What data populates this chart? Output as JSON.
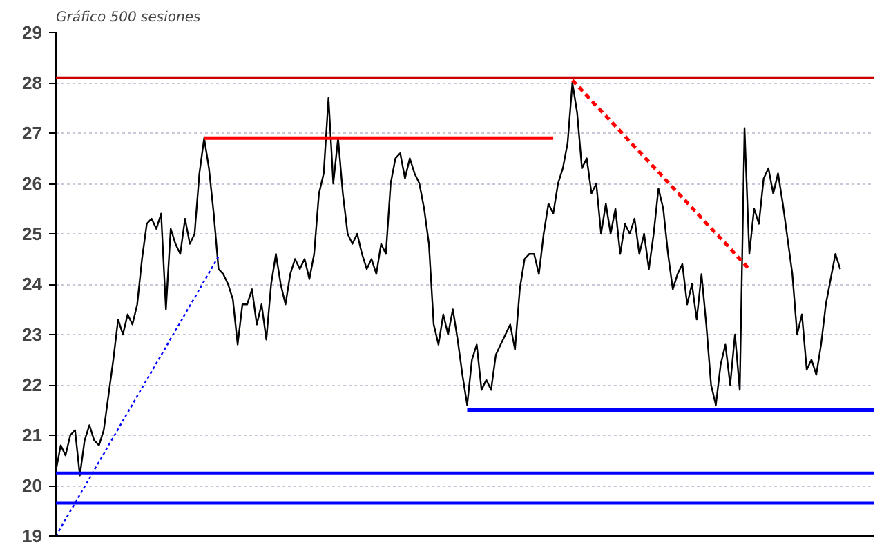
{
  "chart_data": {
    "type": "line",
    "title": "Gráfico 500 sesiones",
    "categories": [
      null,
      null,
      null,
      null,
      null,
      null,
      null,
      null,
      null,
      null,
      null,
      null,
      null,
      null,
      null,
      null,
      null,
      null,
      null,
      null,
      null,
      null,
      null,
      null,
      null,
      null,
      null,
      null,
      null,
      null,
      null,
      null,
      null,
      null,
      null,
      null,
      null,
      null,
      null,
      null,
      null,
      null,
      null,
      null,
      null,
      null,
      null,
      null,
      null,
      null,
      null,
      null,
      null,
      null,
      null,
      null,
      null,
      null,
      null,
      null,
      null,
      null,
      null,
      null,
      null,
      null,
      null,
      null,
      null,
      null,
      null,
      null,
      null,
      null,
      null,
      null,
      null,
      null,
      null,
      null,
      null,
      null,
      null,
      null,
      null,
      null,
      null,
      null,
      null,
      null,
      null,
      null,
      null,
      null,
      null,
      null,
      null,
      null,
      null,
      null,
      null,
      null,
      null,
      null,
      null,
      null,
      null,
      null,
      null,
      null,
      null,
      null,
      null,
      null,
      null,
      null,
      null,
      null,
      null,
      null,
      null,
      null,
      null,
      null,
      null,
      null,
      null,
      null,
      null,
      null,
      null,
      null,
      null,
      null,
      null,
      null,
      null,
      null,
      null,
      null,
      null,
      null,
      null,
      null,
      null,
      null,
      null,
      null,
      null,
      null,
      null,
      null,
      null,
      null,
      null,
      null,
      null,
      null,
      null,
      null,
      null,
      null,
      null,
      null,
      null,
      null,
      null,
      null,
      null,
      null,
      null,
      null
    ],
    "ylim": [
      19,
      29
    ],
    "yticks": [
      19,
      20,
      21,
      22,
      23,
      24,
      25,
      26,
      27,
      28,
      29
    ],
    "grid": "y",
    "marker": "none",
    "ref_lines": [
      {
        "axis": "y",
        "value": 28.1,
        "label": null,
        "color": "#cc0000",
        "line_style": "solid"
      },
      {
        "axis": "y",
        "value": 20.25,
        "label": null,
        "color": "#0000ff",
        "line_style": "solid"
      },
      {
        "axis": "y",
        "value": 19.65,
        "label": null,
        "color": "#0000ff",
        "line_style": "solid"
      }
    ],
    "series": [
      {
        "color": "#000000",
        "line_style": "solid",
        "values": [
          20.3,
          20.8,
          20.6,
          21.0,
          21.1,
          20.2,
          20.9,
          21.2,
          20.9,
          20.8,
          21.1,
          21.8,
          22.5,
          23.3,
          23.0,
          23.4,
          23.2,
          23.6,
          24.5,
          25.2,
          25.3,
          25.1,
          25.4,
          23.5,
          25.1,
          24.8,
          24.6,
          25.3,
          24.8,
          25.0,
          26.2,
          26.9,
          26.3,
          25.4,
          24.3,
          24.2,
          24.0,
          23.7,
          22.8,
          23.6,
          23.6,
          23.9,
          23.2,
          23.6,
          22.9,
          24.0,
          24.6,
          24.0,
          23.6,
          24.2,
          24.5,
          24.3,
          24.5,
          24.1,
          24.6,
          25.8,
          26.2,
          27.7,
          26.0,
          26.9,
          25.8,
          25.0,
          24.8,
          25.0,
          24.6,
          24.3,
          24.5,
          24.2,
          24.8,
          24.6,
          26.0,
          26.5,
          26.6,
          26.1,
          26.5,
          26.2,
          26.0,
          25.5,
          24.8,
          23.2,
          22.8,
          23.4,
          23.0,
          23.5,
          22.9,
          22.2,
          21.6,
          22.5,
          22.8,
          21.9,
          22.1,
          21.9,
          22.6,
          22.8,
          23.0,
          23.2,
          22.7,
          23.9,
          24.5,
          24.6,
          24.6,
          24.2,
          25.0,
          25.6,
          25.4,
          26.0,
          26.3,
          26.8,
          28.0,
          27.4,
          26.3,
          26.5,
          25.8,
          26.0,
          25.0,
          25.6,
          25.0,
          25.5,
          24.6,
          25.2,
          25.0,
          25.3,
          24.6,
          25.0,
          24.3,
          25.0,
          25.9,
          25.5,
          24.6,
          23.9,
          24.2,
          24.4,
          23.6,
          24.0,
          23.3,
          24.2,
          23.2,
          22.0,
          21.6,
          22.4,
          22.8,
          22.0,
          23.0,
          21.9,
          27.1,
          24.6,
          25.5,
          25.2,
          26.1,
          26.3,
          25.8,
          26.2,
          25.6,
          24.9,
          24.2,
          23.0,
          23.4,
          22.3,
          22.5,
          22.2,
          22.8,
          23.6,
          24.1,
          24.6,
          24.3,
          null,
          null,
          null,
          null,
          null,
          null,
          null
        ]
      },
      {
        "color": "#ff0000",
        "line_style": "solid",
        "values": [
          null,
          null,
          null,
          null,
          null,
          null,
          null,
          null,
          null,
          null,
          null,
          null,
          null,
          null,
          null,
          null,
          null,
          null,
          null,
          null,
          null,
          null,
          null,
          null,
          null,
          null,
          null,
          null,
          null,
          null,
          null,
          26.9,
          26.9,
          26.9,
          26.9,
          26.9,
          26.9,
          26.9,
          26.9,
          26.9,
          26.9,
          26.9,
          26.9,
          26.9,
          26.9,
          26.9,
          26.9,
          26.9,
          26.9,
          26.9,
          26.9,
          26.9,
          26.9,
          26.9,
          26.9,
          26.9,
          26.9,
          26.9,
          26.9,
          26.9,
          26.9,
          26.9,
          26.9,
          26.9,
          26.9,
          26.9,
          26.9,
          26.9,
          26.9,
          26.9,
          26.9,
          26.9,
          26.9,
          26.9,
          26.9,
          26.9,
          26.9,
          26.9,
          26.9,
          26.9,
          26.9,
          26.9,
          26.9,
          26.9,
          26.9,
          26.9,
          26.9,
          26.9,
          26.9,
          26.9,
          26.9,
          26.9,
          26.9,
          26.9,
          26.9,
          26.9,
          26.9,
          26.9,
          26.9,
          26.9,
          26.9,
          26.9,
          26.9,
          26.9,
          26.9,
          null,
          null,
          null,
          null,
          null,
          null,
          null,
          null,
          null,
          null,
          null,
          null,
          null,
          null,
          null,
          null,
          null,
          null,
          null,
          null,
          null,
          null,
          null,
          null,
          null,
          null,
          null,
          null,
          null,
          null,
          null,
          null,
          null,
          null,
          null,
          null,
          null,
          null,
          null,
          null,
          null,
          null,
          null,
          null,
          null,
          null,
          null,
          null,
          null,
          null,
          null,
          null,
          null,
          null,
          null,
          null,
          null,
          null,
          null,
          null,
          null,
          null,
          null,
          null,
          null,
          null,
          null
        ]
      },
      {
        "color": "#0000ff",
        "line_style": "solid",
        "values": [
          null,
          null,
          null,
          null,
          null,
          null,
          null,
          null,
          null,
          null,
          null,
          null,
          null,
          null,
          null,
          null,
          null,
          null,
          null,
          null,
          null,
          null,
          null,
          null,
          null,
          null,
          null,
          null,
          null,
          null,
          null,
          null,
          null,
          null,
          null,
          null,
          null,
          null,
          null,
          null,
          null,
          null,
          null,
          null,
          null,
          null,
          null,
          null,
          null,
          null,
          null,
          null,
          null,
          null,
          null,
          null,
          null,
          null,
          null,
          null,
          null,
          null,
          null,
          null,
          null,
          null,
          null,
          null,
          null,
          null,
          null,
          null,
          null,
          null,
          null,
          null,
          null,
          null,
          null,
          null,
          null,
          null,
          null,
          null,
          null,
          null,
          21.5,
          21.5,
          21.5,
          21.5,
          21.5,
          21.5,
          21.5,
          21.5,
          21.5,
          21.5,
          21.5,
          21.5,
          21.5,
          21.5,
          21.5,
          21.5,
          21.5,
          21.5,
          21.5,
          21.5,
          21.5,
          21.5,
          21.5,
          21.5,
          21.5,
          21.5,
          21.5,
          21.5,
          21.5,
          21.5,
          21.5,
          21.5,
          21.5,
          21.5,
          21.5,
          21.5,
          21.5,
          21.5,
          21.5,
          21.5,
          21.5,
          21.5,
          21.5,
          21.5,
          21.5,
          21.5,
          21.5,
          21.5,
          21.5,
          21.5,
          21.5,
          21.5,
          21.5,
          21.5,
          21.5,
          21.5,
          21.5,
          21.5,
          21.5,
          21.5,
          21.5,
          21.5,
          21.5,
          21.5,
          21.5,
          21.5,
          21.5,
          21.5,
          21.5,
          21.5,
          21.5,
          21.5,
          21.5,
          21.5,
          21.5,
          21.5,
          21.5,
          21.5,
          21.5,
          21.5,
          21.5,
          21.5,
          21.5,
          21.5,
          21.5,
          21.5
        ]
      },
      {
        "color": "#0000ff",
        "line_style": "dotted",
        "values": [
          19.0,
          19.16,
          19.33,
          19.49,
          19.65,
          19.82,
          19.98,
          20.14,
          20.31,
          20.47,
          20.63,
          20.8,
          20.96,
          21.12,
          21.29,
          21.45,
          21.61,
          21.78,
          21.94,
          22.1,
          22.26,
          22.43,
          22.59,
          22.75,
          22.92,
          23.08,
          23.24,
          23.41,
          23.57,
          23.73,
          23.9,
          24.06,
          24.22,
          24.39,
          24.55,
          null,
          null,
          null,
          null,
          null,
          null,
          null,
          null,
          null,
          null,
          null,
          null,
          null,
          null,
          null,
          null,
          null,
          null,
          null,
          null,
          null,
          null,
          null,
          null,
          null,
          null,
          null,
          null,
          null,
          null,
          null,
          null,
          null,
          null,
          null,
          null,
          null,
          null,
          null,
          null,
          null,
          null,
          null,
          null,
          null,
          null,
          null,
          null,
          null,
          null,
          null,
          null,
          null,
          null,
          null,
          null,
          null,
          null,
          null,
          null,
          null,
          null,
          null,
          null,
          null,
          null,
          null,
          null,
          null,
          null,
          null,
          null,
          null,
          null,
          null,
          null,
          null,
          null,
          null,
          null,
          null,
          null,
          null,
          null,
          null,
          null,
          null,
          null,
          null,
          null,
          null,
          null,
          null,
          null,
          null,
          null,
          null,
          null,
          null,
          null,
          null,
          null,
          null,
          null,
          null,
          null,
          null,
          null,
          null,
          null,
          null,
          null,
          null,
          null,
          null,
          null,
          null,
          null,
          null,
          null,
          null,
          null,
          null,
          null,
          null,
          null,
          null,
          null,
          null,
          null,
          null,
          null,
          null,
          null,
          null,
          null,
          null
        ]
      },
      {
        "color": "#ff0000",
        "line_style": "dashed",
        "values": [
          null,
          null,
          null,
          null,
          null,
          null,
          null,
          null,
          null,
          null,
          null,
          null,
          null,
          null,
          null,
          null,
          null,
          null,
          null,
          null,
          null,
          null,
          null,
          null,
          null,
          null,
          null,
          null,
          null,
          null,
          null,
          null,
          null,
          null,
          null,
          null,
          null,
          null,
          null,
          null,
          null,
          null,
          null,
          null,
          null,
          null,
          null,
          null,
          null,
          null,
          null,
          null,
          null,
          null,
          null,
          null,
          null,
          null,
          null,
          null,
          null,
          null,
          null,
          null,
          null,
          null,
          null,
          null,
          null,
          null,
          null,
          null,
          null,
          null,
          null,
          null,
          null,
          null,
          null,
          null,
          null,
          null,
          null,
          null,
          null,
          null,
          null,
          null,
          null,
          null,
          null,
          null,
          null,
          null,
          null,
          null,
          null,
          null,
          null,
          null,
          null,
          null,
          null,
          null,
          null,
          null,
          null,
          null,
          28.05,
          27.95,
          27.85,
          27.75,
          27.64,
          27.54,
          27.44,
          27.34,
          27.24,
          27.14,
          27.04,
          26.94,
          26.83,
          26.73,
          26.63,
          26.53,
          26.43,
          26.33,
          26.23,
          26.12,
          26.02,
          25.92,
          25.82,
          25.72,
          25.62,
          25.52,
          25.42,
          25.31,
          25.21,
          25.11,
          25.01,
          24.91,
          24.81,
          24.71,
          24.6,
          24.5,
          24.4,
          24.3,
          null,
          null,
          null,
          null,
          null,
          null,
          null,
          null,
          null,
          null,
          null,
          null,
          null,
          null,
          null,
          null,
          null,
          null,
          null,
          null,
          null,
          null,
          null,
          null,
          null,
          null
        ]
      }
    ]
  }
}
